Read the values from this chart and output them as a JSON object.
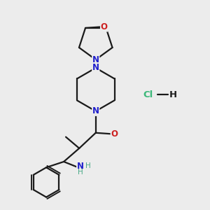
{
  "bg": "#ececec",
  "bc": "#1a1a1a",
  "nc": "#2020cc",
  "oc": "#cc2020",
  "nhc": "#4aaa88",
  "hcl_c": "#3db87a",
  "lw": 1.6,
  "lw_thin": 1.0,
  "fsz": 8.5,
  "xlim": [
    0,
    10
  ],
  "ylim": [
    0,
    10
  ],
  "figsize": [
    3.0,
    3.0
  ],
  "dpi": 100
}
